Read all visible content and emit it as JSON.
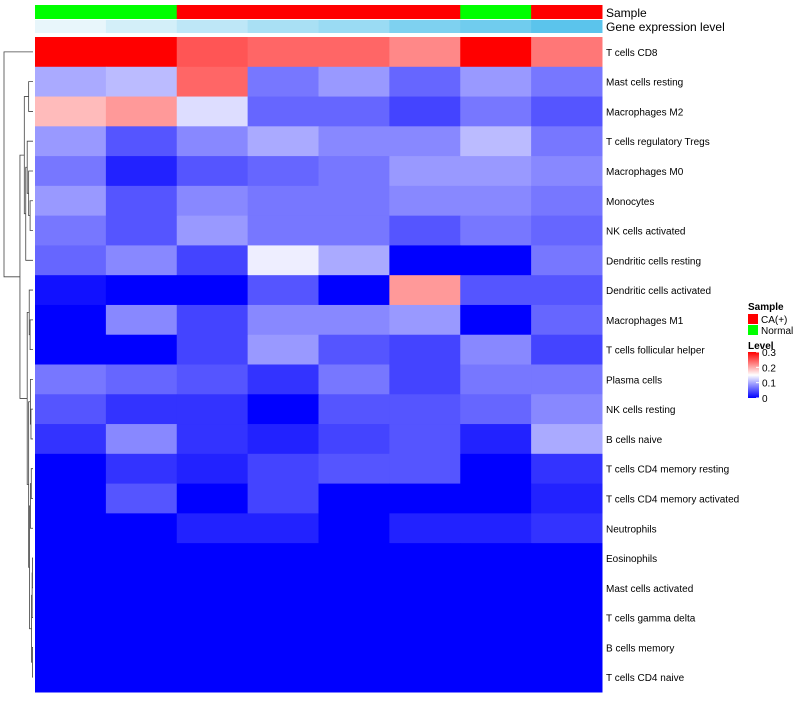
{
  "chart_data": {
    "type": "heatmap",
    "annotations": {
      "sample_label": "Sample",
      "expression_label": "Gene expression level"
    },
    "columns": [
      {
        "sample": "Normal",
        "expression": 0.0
      },
      {
        "sample": "Normal",
        "expression": 0.15
      },
      {
        "sample": "CA(+)",
        "expression": 0.3
      },
      {
        "sample": "CA(+)",
        "expression": 0.45
      },
      {
        "sample": "CA(+)",
        "expression": 0.55
      },
      {
        "sample": "CA(+)",
        "expression": 0.75
      },
      {
        "sample": "Normal",
        "expression": 0.85
      },
      {
        "sample": "CA(+)",
        "expression": 1.0
      }
    ],
    "rows": [
      "T cells CD8",
      "Mast cells resting",
      "Macrophages M2",
      "T cells regulatory  Tregs",
      "Macrophages M0",
      "Monocytes",
      "NK cells activated",
      "Dendritic cells resting",
      "Dendritic cells activated",
      "Macrophages M1",
      "T cells follicular helper",
      "Plasma cells",
      "NK cells resting",
      "B cells naive",
      "T cells CD4 memory resting",
      "T cells CD4 memory activated",
      "Neutrophils",
      "Eosinophils",
      "Mast cells activated",
      "T cells gamma delta",
      "B cells memory",
      "T cells CD4 naive"
    ],
    "values": [
      [
        0.3,
        0.3,
        0.25,
        0.24,
        0.24,
        0.22,
        0.3,
        0.23
      ],
      [
        0.1,
        0.11,
        0.24,
        0.07,
        0.09,
        0.06,
        0.09,
        0.07
      ],
      [
        0.19,
        0.21,
        0.13,
        0.06,
        0.06,
        0.04,
        0.07,
        0.05
      ],
      [
        0.09,
        0.05,
        0.08,
        0.1,
        0.08,
        0.08,
        0.11,
        0.07
      ],
      [
        0.07,
        0.02,
        0.05,
        0.06,
        0.07,
        0.09,
        0.09,
        0.08
      ],
      [
        0.09,
        0.05,
        0.08,
        0.07,
        0.07,
        0.08,
        0.08,
        0.07
      ],
      [
        0.07,
        0.05,
        0.09,
        0.07,
        0.07,
        0.05,
        0.07,
        0.06
      ],
      [
        0.06,
        0.08,
        0.04,
        0.14,
        0.1,
        0.0,
        0.0,
        0.07
      ],
      [
        0.01,
        0.0,
        0.0,
        0.05,
        0.0,
        0.21,
        0.05,
        0.05
      ],
      [
        0.0,
        0.08,
        0.04,
        0.08,
        0.08,
        0.09,
        0.0,
        0.06
      ],
      [
        0.0,
        0.0,
        0.04,
        0.09,
        0.05,
        0.04,
        0.08,
        0.04
      ],
      [
        0.07,
        0.06,
        0.05,
        0.03,
        0.07,
        0.04,
        0.07,
        0.07
      ],
      [
        0.05,
        0.03,
        0.03,
        0.0,
        0.05,
        0.05,
        0.06,
        0.08
      ],
      [
        0.03,
        0.08,
        0.03,
        0.02,
        0.04,
        0.05,
        0.02,
        0.1
      ],
      [
        0.0,
        0.03,
        0.02,
        0.04,
        0.05,
        0.05,
        0.0,
        0.03
      ],
      [
        0.0,
        0.05,
        0.0,
        0.04,
        0.0,
        0.0,
        0.0,
        0.02
      ],
      [
        0.0,
        0.0,
        0.02,
        0.02,
        0.0,
        0.02,
        0.02,
        0.03
      ],
      [
        0.0,
        0.0,
        0.0,
        0.0,
        0.0,
        0.0,
        0.0,
        0.0
      ],
      [
        0.0,
        0.0,
        0.0,
        0.0,
        0.0,
        0.0,
        0.0,
        0.0
      ],
      [
        0.0,
        0.0,
        0.0,
        0.0,
        0.0,
        0.0,
        0.0,
        0.0
      ],
      [
        0.0,
        0.0,
        0.0,
        0.0,
        0.0,
        0.0,
        0.0,
        0.0
      ],
      [
        0.0,
        0.0,
        0.0,
        0.0,
        0.0,
        0.0,
        0.0,
        0.0
      ]
    ],
    "color_scale": {
      "range": [
        0,
        0.3
      ],
      "low": "#0000ff",
      "mid": "#ffffff",
      "high": "#ff0000",
      "mid_value": 0.15
    },
    "legend": {
      "sample_title": "Sample",
      "sample_items": [
        {
          "label": "CA(+)",
          "color": "#ff0000"
        },
        {
          "label": "Normal",
          "color": "#00ff00"
        }
      ],
      "level_title": "Level",
      "level_ticks": [
        {
          "value": 0.3,
          "label": "0.3"
        },
        {
          "value": 0.2,
          "label": "0.2"
        },
        {
          "value": 0.1,
          "label": "0.1"
        },
        {
          "value": 0.0,
          "label": "0"
        }
      ],
      "placement": "right"
    },
    "sample_colors": {
      "CA(+)": "#ff0000",
      "Normal": "#00ff00"
    },
    "expression_colors": {
      "low": "#e8f6fb",
      "high": "#5bc4ec"
    },
    "dendrogram": {
      "side": "left",
      "merges": [
        [
          [
            17
          ],
          [
            18
          ]
        ],
        [
          [
            17,
            18
          ],
          [
            19
          ]
        ],
        [
          [
            20
          ],
          [
            21
          ]
        ],
        [
          [
            17,
            18,
            19
          ],
          [
            20,
            21
          ]
        ],
        [
          [
            14
          ],
          [
            15
          ]
        ],
        [
          [
            14,
            15
          ],
          [
            16
          ]
        ],
        [
          [
            14,
            15,
            16
          ],
          [
            17,
            18,
            19,
            20,
            21
          ]
        ],
        [
          [
            12
          ],
          [
            13
          ]
        ],
        [
          [
            11
          ],
          [
            12,
            13
          ]
        ],
        [
          [
            11,
            12,
            13
          ],
          [
            14,
            15,
            16,
            17,
            18,
            19,
            20,
            21
          ]
        ],
        [
          [
            9
          ],
          [
            10
          ]
        ],
        [
          [
            8
          ],
          [
            9,
            10
          ]
        ],
        [
          [
            8,
            9,
            10
          ],
          [
            11,
            12,
            13,
            14,
            15,
            16,
            17,
            18,
            19,
            20,
            21
          ]
        ],
        [
          [
            5
          ],
          [
            6
          ]
        ],
        [
          [
            4
          ],
          [
            5,
            6
          ]
        ],
        [
          [
            3
          ],
          [
            4,
            5,
            6
          ]
        ],
        [
          [
            3,
            4,
            5,
            6
          ],
          [
            7
          ]
        ],
        [
          [
            1
          ],
          [
            2
          ]
        ],
        [
          [
            1,
            2
          ],
          [
            3,
            4,
            5,
            6,
            7
          ]
        ],
        [
          [
            1,
            2,
            3,
            4,
            5,
            6,
            7
          ],
          [
            8,
            9,
            10,
            11,
            12,
            13,
            14,
            15,
            16,
            17,
            18,
            19,
            20,
            21
          ]
        ],
        [
          [
            0
          ],
          [
            1,
            2,
            3,
            4,
            5,
            6,
            7,
            8,
            9,
            10,
            11,
            12,
            13,
            14,
            15,
            16,
            17,
            18,
            19,
            20,
            21
          ]
        ]
      ],
      "heights": [
        0.02,
        0.03,
        0.02,
        0.05,
        0.06,
        0.09,
        0.12,
        0.07,
        0.09,
        0.15,
        0.1,
        0.13,
        0.2,
        0.1,
        0.15,
        0.2,
        0.25,
        0.15,
        0.3,
        0.45,
        1.0
      ]
    }
  }
}
